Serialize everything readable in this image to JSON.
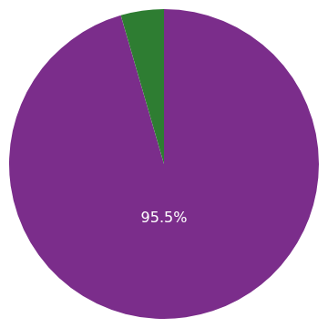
{
  "chart_data": {
    "type": "pie",
    "values": [
      95.5,
      4.5
    ],
    "colors": [
      "#7b2d8b",
      "#2e7d32"
    ],
    "annotations": [
      "95.5%"
    ]
  }
}
